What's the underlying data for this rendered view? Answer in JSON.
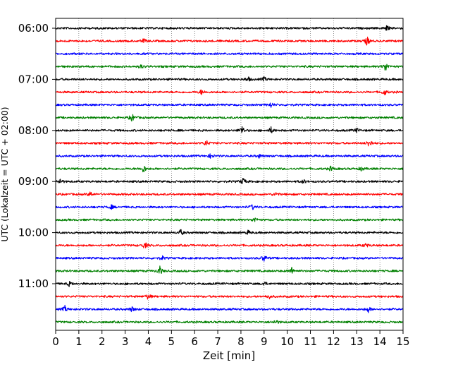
{
  "chart_data": {
    "type": "line",
    "xlabel": "Zeit  [min]",
    "ylabel": "UTC (Lokalzeit = UTC + 02:00)",
    "xlim": [
      0,
      15
    ],
    "x_ticks": [
      "0",
      "1",
      "2",
      "3",
      "4",
      "5",
      "6",
      "7",
      "8",
      "9",
      "10",
      "11",
      "12",
      "13",
      "14",
      "15"
    ],
    "x_grid": true,
    "y_ticks": [
      "06:00",
      "07:00",
      "08:00",
      "09:00",
      "10:00",
      "11:00"
    ],
    "y_tick_trace_index": [
      0,
      4,
      8,
      12,
      16,
      20
    ],
    "trace_interval_min": 15,
    "trace_colors": [
      "#000000",
      "#ff0000",
      "#0000ff",
      "#008000"
    ],
    "traces": [
      {
        "start": "06:00",
        "color": "#000000",
        "events": [
          [
            14.3,
            0.5
          ]
        ]
      },
      {
        "start": "06:15",
        "color": "#ff0000",
        "events": [
          [
            3.8,
            0.4
          ],
          [
            13.45,
            0.9
          ]
        ]
      },
      {
        "start": "06:30",
        "color": "#0000ff",
        "events": []
      },
      {
        "start": "06:45",
        "color": "#008000",
        "events": [
          [
            3.7,
            0.4
          ],
          [
            14.25,
            1.0
          ]
        ]
      },
      {
        "start": "07:00",
        "color": "#000000",
        "events": [
          [
            8.3,
            0.5
          ],
          [
            9.0,
            0.4
          ]
        ]
      },
      {
        "start": "07:15",
        "color": "#ff0000",
        "events": [
          [
            6.3,
            0.5
          ],
          [
            14.2,
            0.6
          ]
        ]
      },
      {
        "start": "07:30",
        "color": "#0000ff",
        "events": [
          [
            9.3,
            0.5
          ]
        ]
      },
      {
        "start": "07:45",
        "color": "#008000",
        "events": [
          [
            3.3,
            0.8
          ]
        ]
      },
      {
        "start": "08:00",
        "color": "#000000",
        "events": [
          [
            8.05,
            0.9
          ],
          [
            9.3,
            0.6
          ],
          [
            13.0,
            0.4
          ]
        ]
      },
      {
        "start": "08:15",
        "color": "#ff0000",
        "events": [
          [
            6.5,
            0.6
          ],
          [
            13.55,
            1.0
          ]
        ]
      },
      {
        "start": "08:30",
        "color": "#0000ff",
        "events": [
          [
            6.7,
            0.5
          ],
          [
            8.8,
            0.4
          ]
        ]
      },
      {
        "start": "08:45",
        "color": "#008000",
        "events": [
          [
            3.8,
            0.8
          ],
          [
            11.9,
            0.5
          ],
          [
            13.2,
            0.4
          ]
        ]
      },
      {
        "start": "09:00",
        "color": "#000000",
        "events": [
          [
            0.2,
            0.6
          ],
          [
            8.1,
            0.7
          ],
          [
            10.7,
            0.4
          ]
        ]
      },
      {
        "start": "09:15",
        "color": "#ff0000",
        "events": [
          [
            1.5,
            0.5
          ],
          [
            9.5,
            0.4
          ]
        ]
      },
      {
        "start": "09:30",
        "color": "#0000ff",
        "events": [
          [
            2.4,
            0.4
          ],
          [
            8.5,
            0.5
          ]
        ]
      },
      {
        "start": "09:45",
        "color": "#008000",
        "events": [
          [
            8.6,
            0.5
          ]
        ]
      },
      {
        "start": "10:00",
        "color": "#000000",
        "events": [
          [
            5.4,
            0.6
          ],
          [
            8.3,
            0.4
          ]
        ]
      },
      {
        "start": "10:15",
        "color": "#ff0000",
        "events": [
          [
            3.85,
            0.7
          ],
          [
            13.4,
            0.4
          ]
        ]
      },
      {
        "start": "10:30",
        "color": "#0000ff",
        "events": [
          [
            4.6,
            0.4
          ],
          [
            9.0,
            0.7
          ]
        ]
      },
      {
        "start": "10:45",
        "color": "#008000",
        "events": [
          [
            4.5,
            0.9
          ],
          [
            10.2,
            0.7
          ]
        ]
      },
      {
        "start": "11:00",
        "color": "#000000",
        "events": [
          [
            0.6,
            0.5
          ],
          [
            9.0,
            0.4
          ]
        ]
      },
      {
        "start": "11:15",
        "color": "#ff0000",
        "events": [
          [
            4.0,
            0.6
          ],
          [
            9.2,
            0.5
          ]
        ]
      },
      {
        "start": "11:30",
        "color": "#0000ff",
        "events": [
          [
            0.4,
            0.6
          ],
          [
            3.3,
            0.5
          ],
          [
            13.5,
            0.6
          ]
        ]
      },
      {
        "start": "11:45",
        "color": "#008000",
        "events": [
          [
            9.5,
            0.5
          ]
        ]
      }
    ]
  }
}
